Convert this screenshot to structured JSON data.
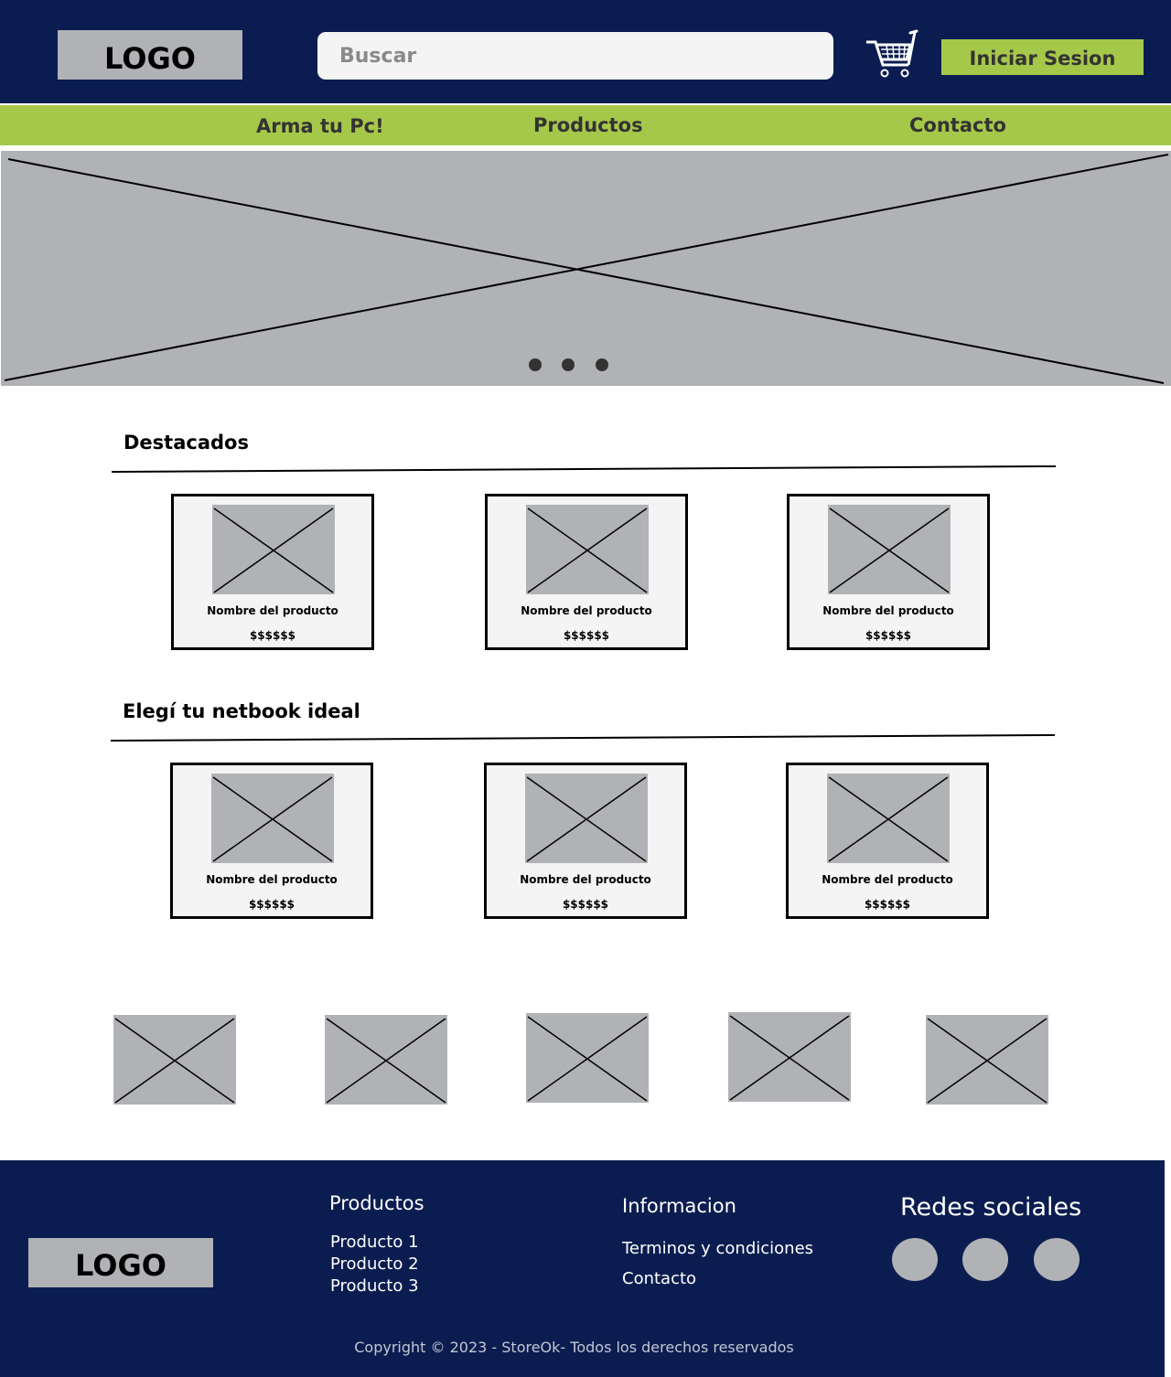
{
  "header": {
    "logo": "LOGO",
    "search_placeholder": "Buscar",
    "cart_icon": "shopping-cart-icon",
    "login_label": "Iniciar Sesion"
  },
  "nav": {
    "items": [
      {
        "label": "Arma tu Pc!"
      },
      {
        "label": "Productos"
      },
      {
        "label": "Contacto"
      }
    ]
  },
  "hero": {
    "image_icon": "image-placeholder-icon",
    "slides": 3
  },
  "sections": [
    {
      "title": "Destacados",
      "products": [
        {
          "name": "Nombre del producto",
          "price": "$$$$$$"
        },
        {
          "name": "Nombre del producto",
          "price": "$$$$$$"
        },
        {
          "name": "Nombre del producto",
          "price": "$$$$$$"
        }
      ]
    },
    {
      "title": "Elegí tu netbook ideal",
      "products": [
        {
          "name": "Nombre del producto",
          "price": "$$$$$$"
        },
        {
          "name": "Nombre del producto",
          "price": "$$$$$$"
        },
        {
          "name": "Nombre del producto",
          "price": "$$$$$$"
        }
      ]
    }
  ],
  "brands": {
    "count": 5,
    "icon": "image-placeholder-icon"
  },
  "footer": {
    "logo": "LOGO",
    "productos": {
      "heading": "Productos",
      "links": [
        "Producto 1",
        "Producto 2",
        "Producto 3"
      ]
    },
    "informacion": {
      "heading": "Informacion",
      "links": [
        "Terminos y condiciones",
        "Contacto"
      ]
    },
    "redes": {
      "heading": "Redes sociales",
      "count": 3
    },
    "copyright": "Copyright © 2023 - StoreOk- Todos los derechos reservados"
  },
  "colors": {
    "navy": "#0b1d50",
    "accent_green": "#a6c84a",
    "placeholder_gray": "#b1b2b6",
    "card_bg": "#f4f4f4"
  }
}
